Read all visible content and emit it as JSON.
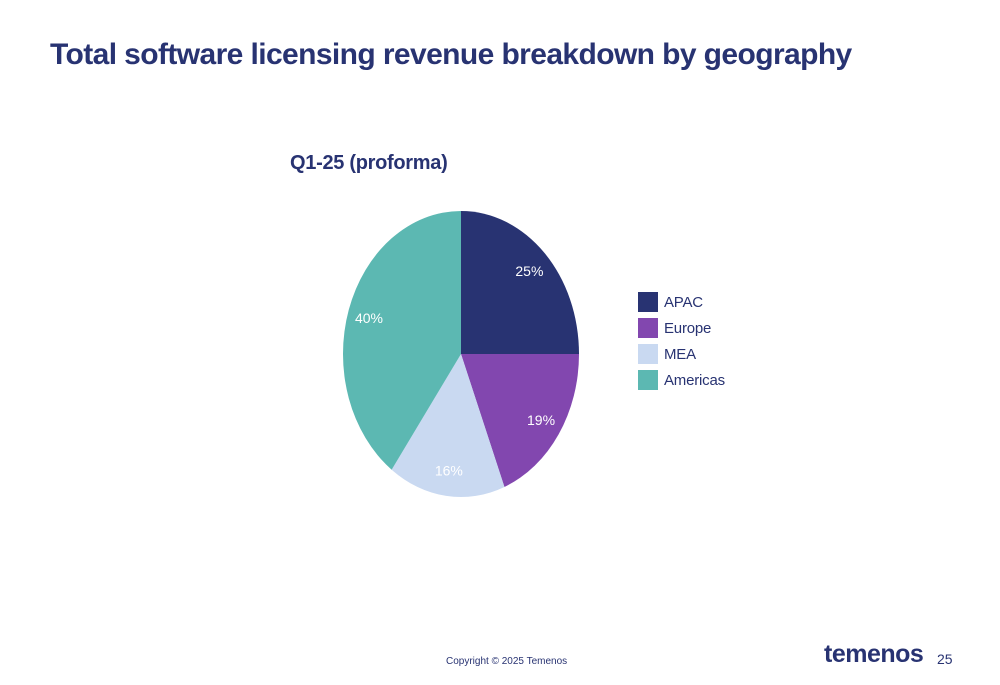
{
  "slide": {
    "title": "Total software licensing revenue breakdown by geography"
  },
  "chart_data": {
    "type": "pie",
    "title": "Q1-25 (proforma)",
    "categories": [
      "APAC",
      "Europe",
      "MEA",
      "Americas"
    ],
    "values": [
      25,
      19,
      16,
      40
    ],
    "labels": [
      "25%",
      "19%",
      "16%",
      "40%"
    ],
    "colors": [
      "#283372",
      "#8247AF",
      "#C9D9F1",
      "#5CB8B2"
    ],
    "start_angle_deg": 0,
    "direction": "clockwise",
    "legend": "right",
    "legend_entries": [
      "APAC",
      "Europe",
      "MEA",
      "Americas"
    ]
  },
  "footer": {
    "copyright": "Copyright © 2025 Temenos",
    "logo_text": "temenos",
    "page_number": "25"
  }
}
